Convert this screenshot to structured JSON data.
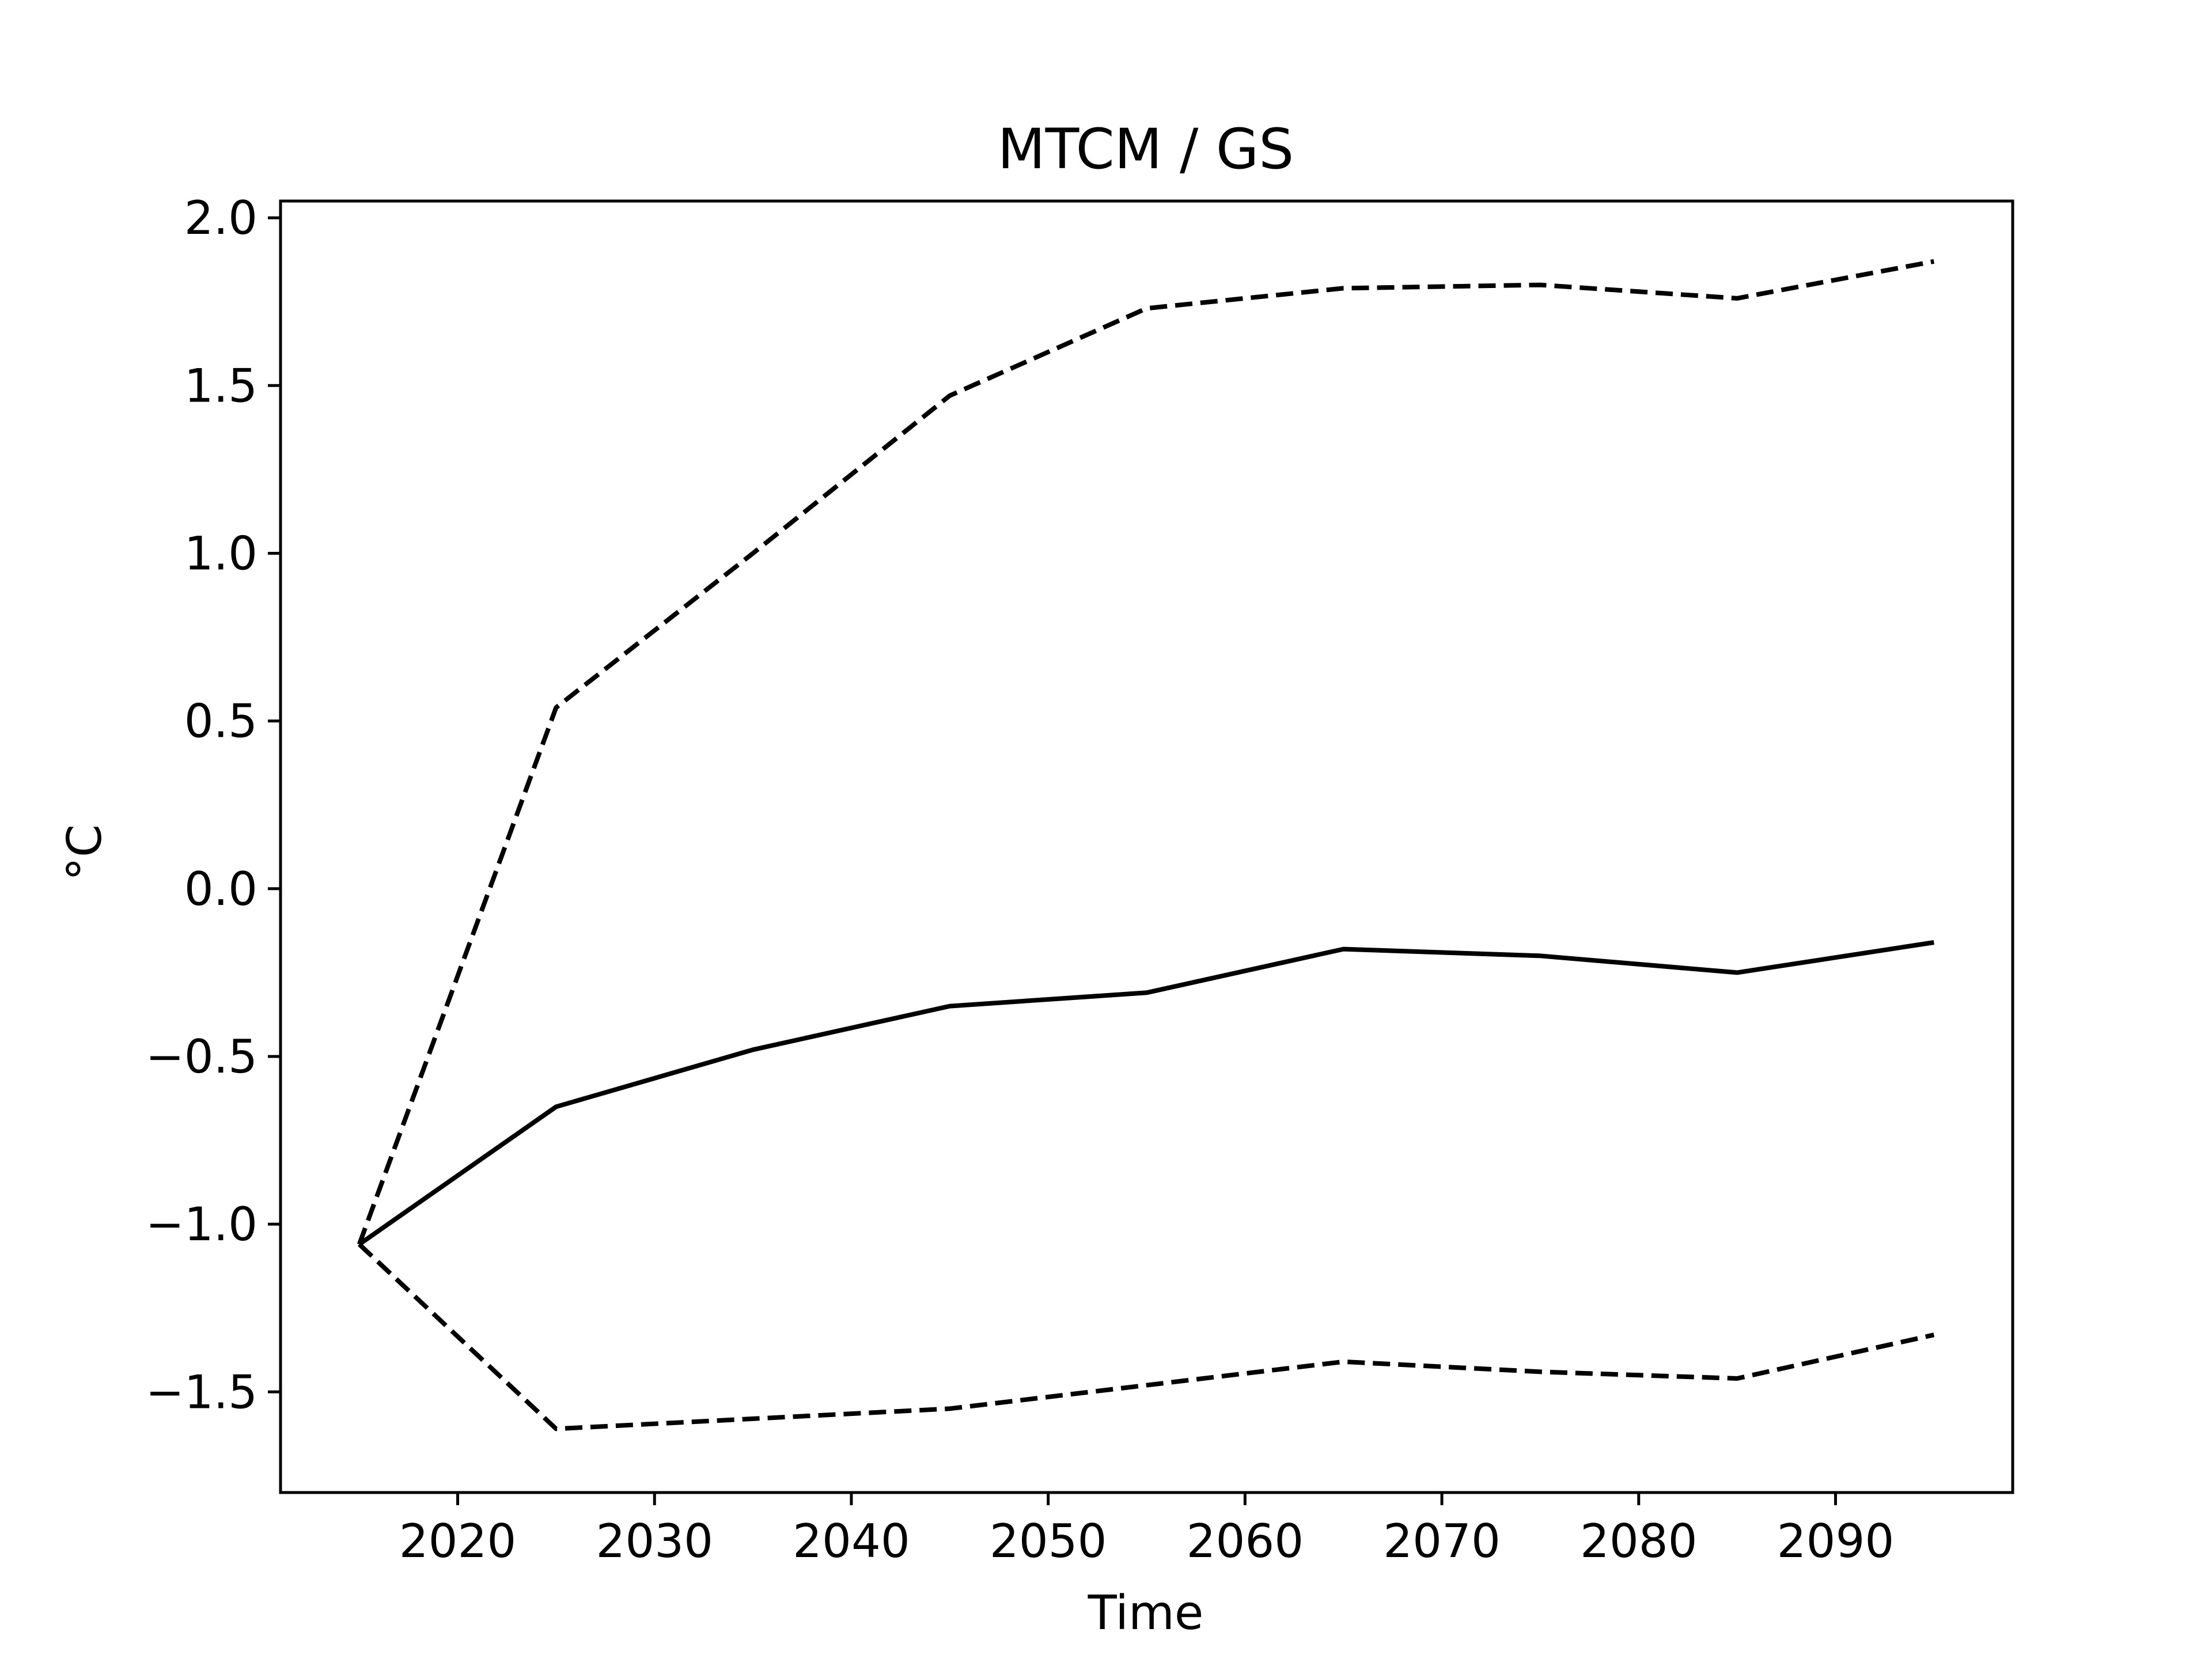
{
  "chart_data": {
    "type": "line",
    "title": "MTCM / GS",
    "xlabel": "Time",
    "ylabel": "°C",
    "xlim": [
      2011,
      2099
    ],
    "ylim": [
      -1.8,
      2.05
    ],
    "xticks": [
      2020,
      2030,
      2040,
      2050,
      2060,
      2070,
      2080,
      2090
    ],
    "yticks": [
      -1.5,
      -1.0,
      -0.5,
      0.0,
      0.5,
      1.0,
      1.5,
      2.0
    ],
    "xtick_labels": [
      "2020",
      "2030",
      "2040",
      "2050",
      "2060",
      "2070",
      "2080",
      "2090"
    ],
    "ytick_labels": [
      "−1.5",
      "−1.0",
      "−0.5",
      "0.0",
      "0.5",
      "1.0",
      "1.5",
      "2.0"
    ],
    "grid": false,
    "x": [
      2015,
      2025,
      2035,
      2045,
      2055,
      2065,
      2075,
      2085,
      2095
    ],
    "series": [
      {
        "style": "solid",
        "color": "#000000",
        "values": [
          -1.06,
          -0.65,
          -0.48,
          -0.35,
          -0.31,
          -0.18,
          -0.2,
          -0.25,
          -0.16
        ]
      },
      {
        "style": "dashed",
        "color": "#000000",
        "values": [
          -1.06,
          0.54,
          1.0,
          1.47,
          1.73,
          1.79,
          1.8,
          1.76,
          1.87
        ]
      },
      {
        "style": "dashed",
        "color": "#000000",
        "values": [
          -1.06,
          -1.61,
          -1.58,
          -1.55,
          -1.48,
          -1.41,
          -1.44,
          -1.46,
          -1.33
        ]
      }
    ]
  }
}
